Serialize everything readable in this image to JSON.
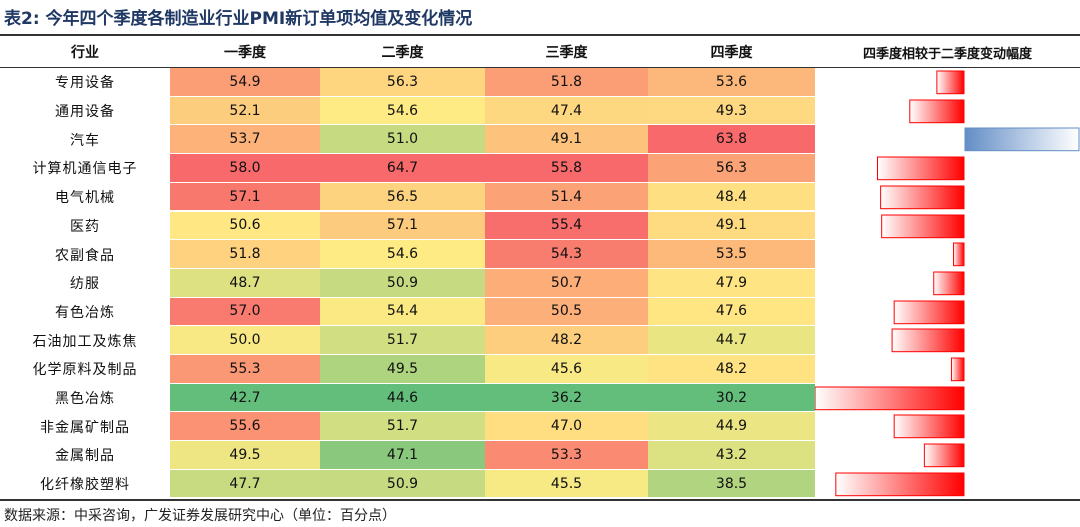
{
  "title": "表2: 今年四个季度各制造业行业PMI新订单项均值及变化情况",
  "header": [
    "行业",
    "一季度",
    "二季度",
    "三季度",
    "四季度",
    "四季度相较于二季度变动幅度"
  ],
  "rows": [
    {
      "name": "专用设备",
      "values": [
        "54.9",
        "56.3",
        "51.8",
        "53.6"
      ],
      "change": -2.7
    },
    {
      "name": "通用设备",
      "values": [
        "52.1",
        "54.6",
        "47.4",
        "49.3"
      ],
      "change": -5.3
    },
    {
      "name": "汽车",
      "values": [
        "53.7",
        "51.0",
        "49.1",
        "63.8"
      ],
      "change": 12.8
    },
    {
      "name": "计算机通信电子",
      "values": [
        "58.0",
        "64.7",
        "55.8",
        "56.3"
      ],
      "change": -8.4
    },
    {
      "name": "电气机械",
      "values": [
        "57.1",
        "56.5",
        "51.4",
        "48.4"
      ],
      "change": -8.1
    },
    {
      "name": "医药",
      "values": [
        "50.6",
        "57.1",
        "55.4",
        "49.1"
      ],
      "change": -8.0
    },
    {
      "name": "农副食品",
      "values": [
        "51.8",
        "54.6",
        "54.3",
        "53.5"
      ],
      "change": -1.1
    },
    {
      "name": "纺服",
      "values": [
        "48.7",
        "50.9",
        "50.7",
        "47.9"
      ],
      "change": -3.0
    },
    {
      "name": "有色冶炼",
      "values": [
        "57.0",
        "54.4",
        "50.5",
        "47.6"
      ],
      "change": -6.8
    },
    {
      "name": "石油加工及炼焦",
      "values": [
        "50.0",
        "51.7",
        "48.2",
        "44.7"
      ],
      "change": -7.0
    },
    {
      "name": "化学原料及制品",
      "values": [
        "55.3",
        "49.5",
        "45.6",
        "48.2"
      ],
      "change": -1.3
    },
    {
      "name": "黑色冶炼",
      "values": [
        "42.7",
        "44.6",
        "36.2",
        "30.2"
      ],
      "change": -14.4
    },
    {
      "name": "非金属矿制品",
      "values": [
        "55.6",
        "51.7",
        "47.0",
        "44.9"
      ],
      "change": -6.8
    },
    {
      "name": "金属制品",
      "values": [
        "49.5",
        "47.1",
        "53.3",
        "43.2"
      ],
      "change": -3.9
    },
    {
      "name": "化纤橡胶塑料",
      "values": [
        "47.7",
        "50.9",
        "45.5",
        "38.5"
      ],
      "change": -12.4
    }
  ],
  "color_scale": {
    "high": "#f8696b",
    "mid": "#ffeb84",
    "low": "#63be7b"
  },
  "bar_colors": {
    "negative": "#ff0000",
    "positive": "#638ec6"
  },
  "source": "数据来源：中采咨询，广发证券发展研究中心（单位：百分点）"
}
